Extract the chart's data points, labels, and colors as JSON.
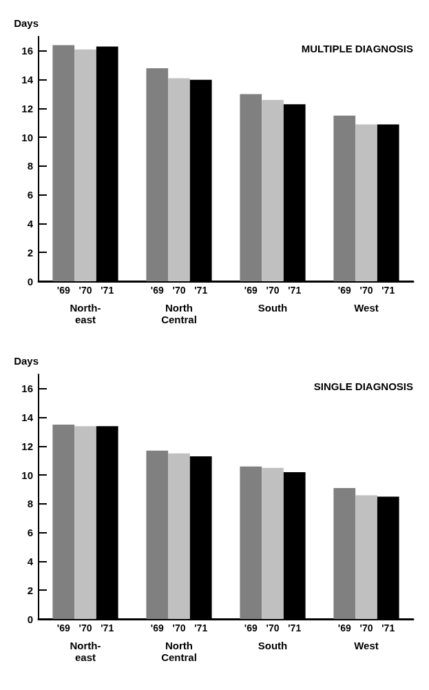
{
  "chart_data": [
    {
      "type": "bar",
      "title": "MULTIPLE DIAGNOSIS",
      "ylabel": "Days",
      "categories": [
        "North-\neast",
        "North\nCentral",
        "South",
        "West"
      ],
      "series": [
        {
          "name": "'69",
          "color": "#808080",
          "values": [
            16.4,
            14.8,
            13.0,
            11.5
          ]
        },
        {
          "name": "'70",
          "color": "#c0c0c0",
          "values": [
            16.1,
            14.1,
            12.6,
            10.9
          ]
        },
        {
          "name": "'71",
          "color": "#000000",
          "values": [
            16.3,
            14.0,
            12.3,
            10.9
          ]
        }
      ],
      "ylim": [
        0,
        17
      ],
      "yticks": [
        0,
        2,
        4,
        6,
        8,
        10,
        12,
        14,
        16
      ],
      "grid": false,
      "legend": false
    },
    {
      "type": "bar",
      "title": "SINGLE DIAGNOSIS",
      "ylabel": "Days",
      "categories": [
        "North-\neast",
        "North\nCentral",
        "South",
        "West"
      ],
      "series": [
        {
          "name": "'69",
          "color": "#808080",
          "values": [
            13.5,
            11.7,
            10.6,
            9.1
          ]
        },
        {
          "name": "'70",
          "color": "#c0c0c0",
          "values": [
            13.4,
            11.5,
            10.5,
            8.6
          ]
        },
        {
          "name": "'71",
          "color": "#000000",
          "values": [
            13.4,
            11.3,
            10.2,
            8.5
          ]
        }
      ],
      "ylim": [
        0,
        17
      ],
      "yticks": [
        0,
        2,
        4,
        6,
        8,
        10,
        12,
        14,
        16
      ],
      "grid": false,
      "legend": false
    }
  ]
}
